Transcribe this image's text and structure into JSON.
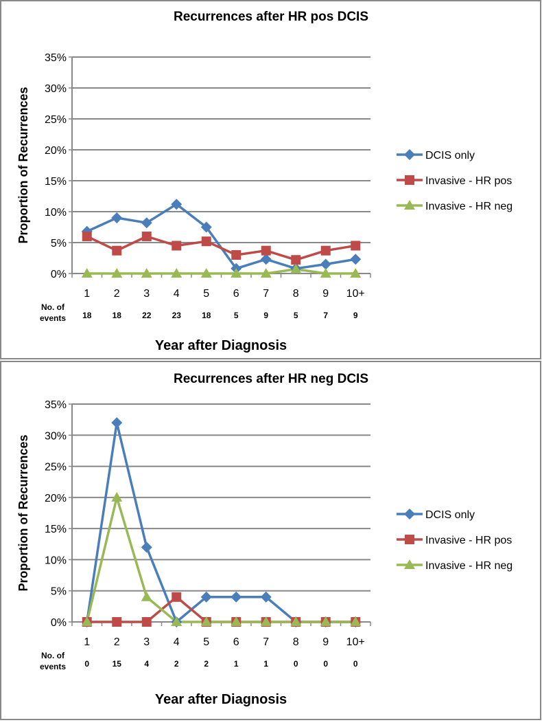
{
  "chart_data": [
    {
      "type": "line",
      "title": "Recurrences after HR pos DCIS",
      "xlabel": "Year after Diagnosis",
      "ylabel": "Proportion of Recurrences",
      "ylim": [
        0,
        35
      ],
      "yticks": [
        "0%",
        "5%",
        "10%",
        "15%",
        "20%",
        "25%",
        "30%",
        "35%"
      ],
      "categories": [
        "1",
        "2",
        "3",
        "4",
        "5",
        "6",
        "7",
        "8",
        "9",
        "10+"
      ],
      "events_label": [
        "No. of",
        "events"
      ],
      "events": [
        "18",
        "18",
        "22",
        "23",
        "18",
        "5",
        "9",
        "5",
        "7",
        "9"
      ],
      "legend_position": "right",
      "series": [
        {
          "name": "DCIS only",
          "marker": "diamond",
          "color": "#4a7ebb",
          "values": [
            6.8,
            9.0,
            8.2,
            11.2,
            7.5,
            0.8,
            2.3,
            0.8,
            1.5,
            2.3
          ]
        },
        {
          "name": "Invasive - HR pos",
          "marker": "square",
          "color": "#be4b48",
          "values": [
            6.0,
            3.7,
            6.0,
            4.5,
            5.2,
            3.0,
            3.7,
            2.2,
            3.7,
            4.5
          ]
        },
        {
          "name": "Invasive - HR neg",
          "marker": "triangle",
          "color": "#98b954",
          "values": [
            0,
            0,
            0,
            0,
            0,
            0,
            0,
            0.7,
            0,
            0
          ]
        }
      ]
    },
    {
      "type": "line",
      "title": "Recurrences after HR neg DCIS",
      "xlabel": "Year after Diagnosis",
      "ylabel": "Proportion of Recurrences",
      "ylim": [
        0,
        35
      ],
      "yticks": [
        "0%",
        "5%",
        "10%",
        "15%",
        "20%",
        "25%",
        "30%",
        "35%"
      ],
      "categories": [
        "1",
        "2",
        "3",
        "4",
        "5",
        "6",
        "7",
        "8",
        "9",
        "10+"
      ],
      "events_label": [
        "No. of",
        "events"
      ],
      "events": [
        "0",
        "15",
        "4",
        "2",
        "2",
        "1",
        "1",
        "0",
        "0",
        "0"
      ],
      "legend_position": "right",
      "series": [
        {
          "name": "DCIS only",
          "marker": "diamond",
          "color": "#4a7ebb",
          "values": [
            0,
            32,
            12,
            0,
            4,
            4,
            4,
            0,
            0,
            0
          ]
        },
        {
          "name": "Invasive - HR pos",
          "marker": "square",
          "color": "#be4b48",
          "values": [
            0,
            0,
            0,
            4,
            0,
            0,
            0,
            0,
            0,
            0
          ]
        },
        {
          "name": "Invasive - HR neg",
          "marker": "triangle",
          "color": "#98b954",
          "values": [
            0,
            20,
            4,
            0,
            0,
            0,
            0,
            0,
            0,
            0
          ]
        }
      ]
    }
  ]
}
